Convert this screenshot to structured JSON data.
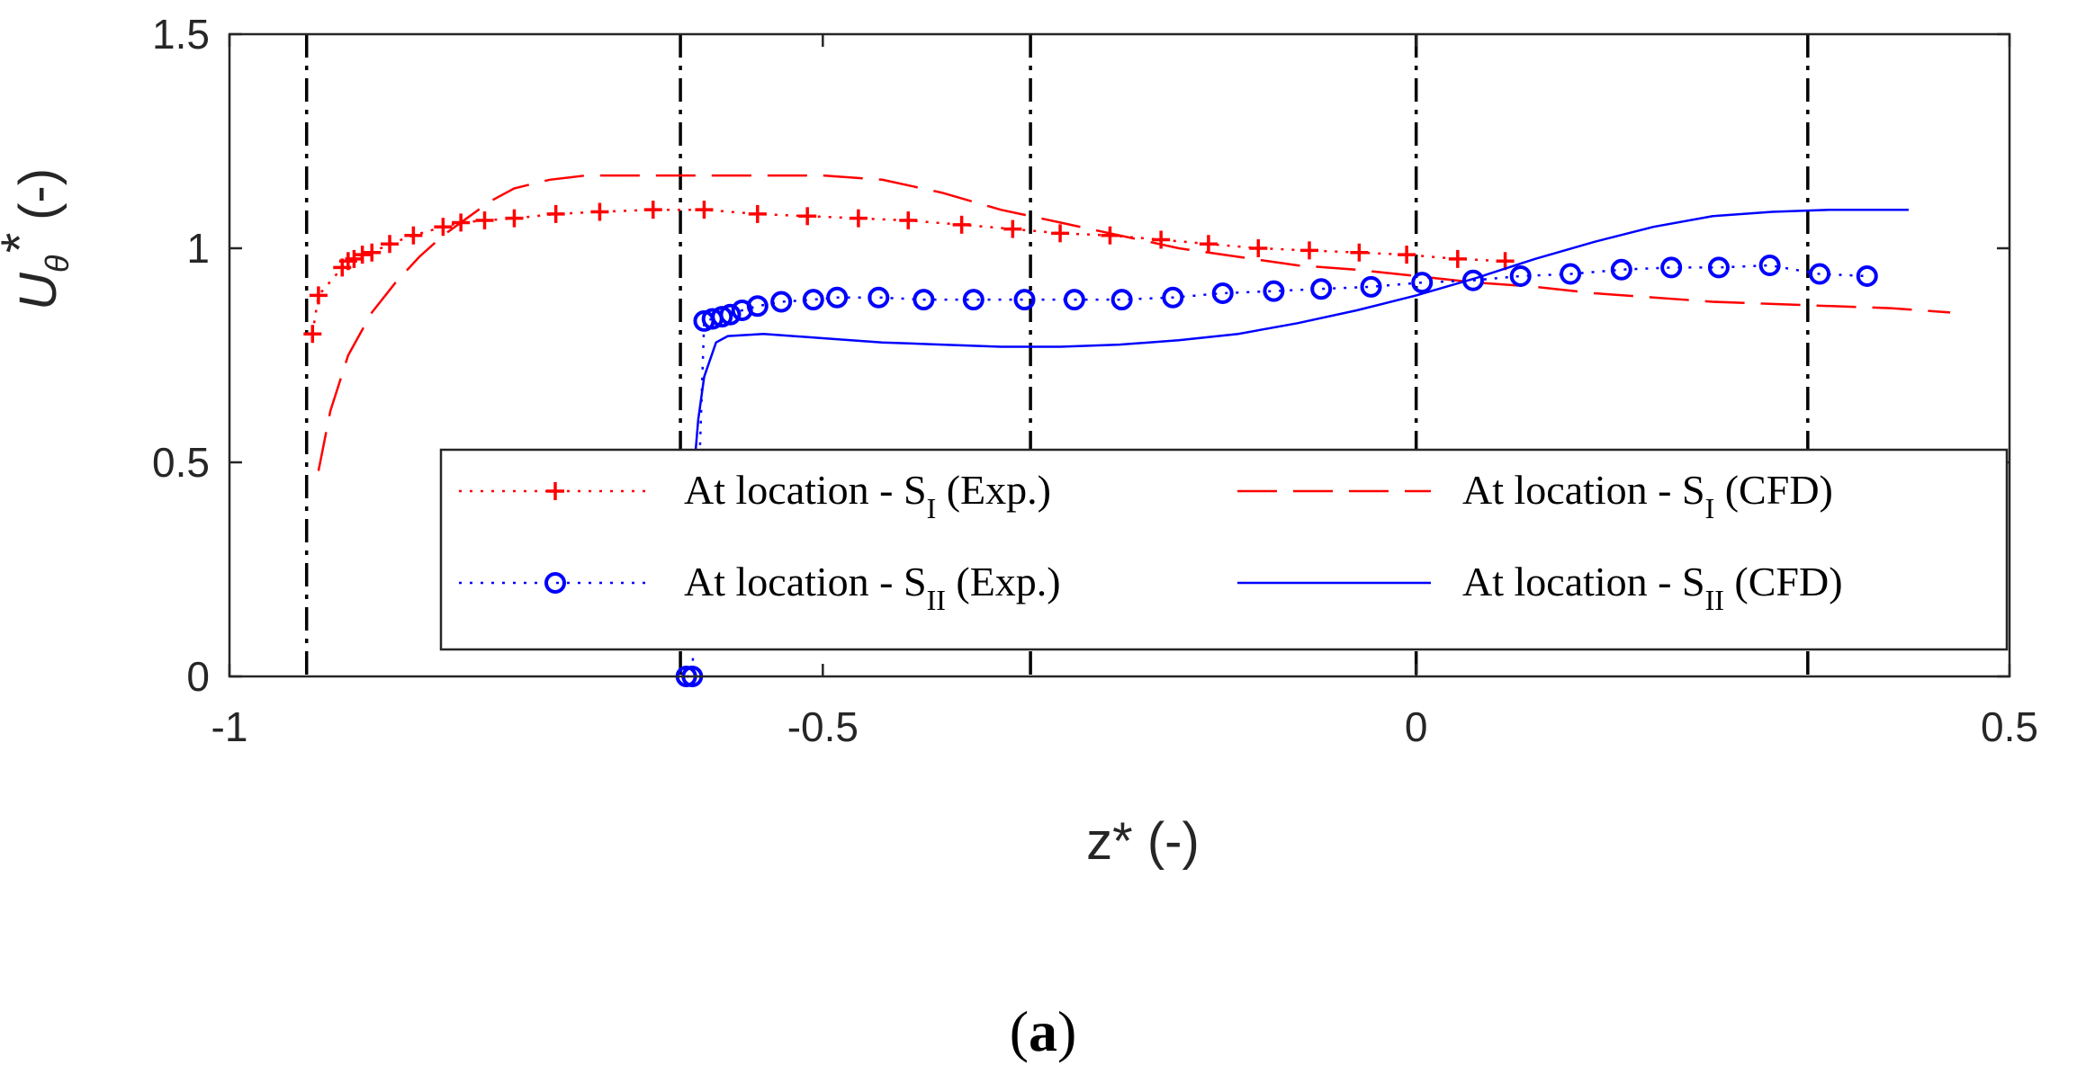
{
  "chart_data": {
    "type": "line",
    "xlabel": "z* (-)",
    "ylabel": "U_θ* (-)",
    "ylabel_main": "U",
    "ylabel_sub": "θ",
    "ylabel_sup": "*",
    "ylabel_unit": " (-)",
    "xlim": [
      -1.0,
      0.5
    ],
    "ylim": [
      0,
      1.5
    ],
    "x_ticks": [
      -1,
      -0.5,
      0,
      0.5
    ],
    "x_tick_labels": [
      "-1",
      "-0.5",
      "0",
      "0.5"
    ],
    "y_ticks": [
      0,
      0.5,
      1,
      1.5
    ],
    "y_tick_labels": [
      "0",
      "0.5",
      "1",
      "1.5"
    ],
    "vertical_reference_lines": [
      -0.935,
      -0.62,
      -0.325,
      0.0,
      0.33
    ],
    "series": [
      {
        "name": "At location - S_I (Exp.)",
        "legend_main": "At location - S",
        "legend_sub": "I",
        "legend_suffix": " (Exp.)",
        "color": "#ff0000",
        "line_style": "dotted",
        "marker": "plus",
        "x": [
          -0.93,
          -0.925,
          -0.905,
          -0.9,
          -0.895,
          -0.888,
          -0.88,
          -0.865,
          -0.845,
          -0.82,
          -0.805,
          -0.785,
          -0.76,
          -0.725,
          -0.688,
          -0.643,
          -0.6,
          -0.555,
          -0.513,
          -0.47,
          -0.428,
          -0.383,
          -0.34,
          -0.3,
          -0.258,
          -0.215,
          -0.175,
          -0.133,
          -0.09,
          -0.048,
          -0.008,
          0.035,
          0.075
        ],
        "y": [
          0.8,
          0.89,
          0.955,
          0.97,
          0.975,
          0.985,
          0.99,
          1.01,
          1.03,
          1.05,
          1.06,
          1.065,
          1.07,
          1.08,
          1.085,
          1.09,
          1.09,
          1.08,
          1.075,
          1.07,
          1.065,
          1.055,
          1.045,
          1.035,
          1.03,
          1.02,
          1.01,
          1.0,
          0.995,
          0.99,
          0.985,
          0.975,
          0.97
        ]
      },
      {
        "name": "At location - S_I (CFD)",
        "legend_main": "At location - S",
        "legend_sub": "I",
        "legend_suffix": " (CFD)",
        "color": "#ff0000",
        "line_style": "dashed",
        "marker": "none",
        "x": [
          -0.925,
          -0.915,
          -0.9,
          -0.88,
          -0.86,
          -0.84,
          -0.82,
          -0.8,
          -0.78,
          -0.76,
          -0.73,
          -0.7,
          -0.65,
          -0.6,
          -0.55,
          -0.5,
          -0.45,
          -0.4,
          -0.35,
          -0.3,
          -0.25,
          -0.2,
          -0.15,
          -0.1,
          -0.05,
          0.0,
          0.05,
          0.1,
          0.15,
          0.2,
          0.25,
          0.3,
          0.35,
          0.4,
          0.45
        ],
        "y": [
          0.48,
          0.62,
          0.75,
          0.85,
          0.92,
          0.98,
          1.03,
          1.07,
          1.11,
          1.14,
          1.16,
          1.17,
          1.17,
          1.17,
          1.17,
          1.17,
          1.16,
          1.13,
          1.09,
          1.06,
          1.03,
          1.0,
          0.98,
          0.96,
          0.95,
          0.935,
          0.92,
          0.91,
          0.895,
          0.885,
          0.875,
          0.87,
          0.865,
          0.86,
          0.85
        ]
      },
      {
        "name": "At location - S_II (Exp.)",
        "legend_main": "At location - S",
        "legend_sub": "II",
        "legend_suffix": " (Exp.)",
        "color": "#0000ff",
        "line_style": "dotted",
        "marker": "circle",
        "x": [
          -0.615,
          -0.61,
          -0.6,
          -0.593,
          -0.585,
          -0.578,
          -0.568,
          -0.555,
          -0.535,
          -0.508,
          -0.488,
          -0.453,
          -0.415,
          -0.373,
          -0.33,
          -0.288,
          -0.248,
          -0.205,
          -0.163,
          -0.12,
          -0.08,
          -0.038,
          0.005,
          0.048,
          0.088,
          0.13,
          0.173,
          0.215,
          0.255,
          0.298,
          0.34,
          0.38
        ],
        "y": [
          0.0,
          0.0,
          0.83,
          0.835,
          0.84,
          0.845,
          0.855,
          0.865,
          0.875,
          0.88,
          0.885,
          0.885,
          0.88,
          0.88,
          0.88,
          0.88,
          0.88,
          0.885,
          0.895,
          0.9,
          0.905,
          0.91,
          0.92,
          0.925,
          0.935,
          0.94,
          0.95,
          0.955,
          0.955,
          0.96,
          0.94,
          0.935
        ]
      },
      {
        "name": "At location - S_II (CFD)",
        "legend_main": "At location - S",
        "legend_sub": "II",
        "legend_suffix": " (CFD)",
        "color": "#0000ff",
        "line_style": "solid",
        "marker": "none",
        "x": [
          -0.608,
          -0.605,
          -0.6,
          -0.59,
          -0.58,
          -0.55,
          -0.5,
          -0.45,
          -0.4,
          -0.35,
          -0.3,
          -0.25,
          -0.2,
          -0.15,
          -0.1,
          -0.05,
          0.0,
          0.05,
          0.1,
          0.15,
          0.2,
          0.25,
          0.3,
          0.35,
          0.38,
          0.415
        ],
        "y": [
          0.5,
          0.6,
          0.7,
          0.78,
          0.795,
          0.8,
          0.79,
          0.78,
          0.775,
          0.77,
          0.77,
          0.775,
          0.785,
          0.8,
          0.825,
          0.855,
          0.89,
          0.93,
          0.975,
          1.015,
          1.05,
          1.075,
          1.085,
          1.09,
          1.09,
          1.09
        ]
      }
    ],
    "legend_location": "lower-right"
  },
  "caption": {
    "open": "(",
    "letter": "a",
    "close": ")"
  }
}
